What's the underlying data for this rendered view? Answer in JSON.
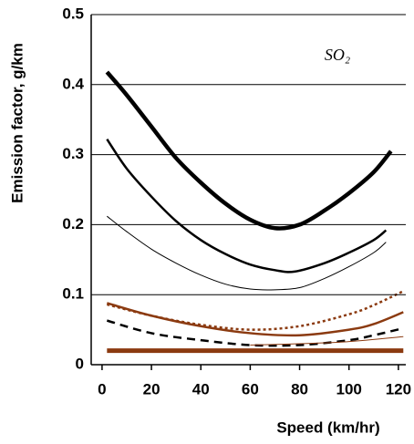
{
  "chart_data": {
    "type": "line",
    "ylabel": "Emission factor, g/km",
    "xlabel": "Speed (km/hr)",
    "annotation": "SO₂",
    "xlim": [
      -4.4,
      123
    ],
    "ylim": [
      0,
      0.5
    ],
    "xticks": [
      0,
      20,
      40,
      60,
      80,
      100,
      120
    ],
    "yticks": [
      0,
      0.1,
      0.2,
      0.3,
      0.4,
      0.5
    ],
    "grid": true,
    "series": [
      {
        "color": "#000000",
        "width": 4.5,
        "dash": "none",
        "x": [
          2,
          10,
          20,
          30,
          40,
          50,
          60,
          70,
          80,
          90,
          100,
          110,
          117
        ],
        "values": [
          0.418,
          0.385,
          0.34,
          0.295,
          0.26,
          0.23,
          0.207,
          0.195,
          0.2,
          0.22,
          0.245,
          0.275,
          0.305
        ]
      },
      {
        "color": "#000000",
        "width": 2.5,
        "dash": "none",
        "x": [
          2,
          10,
          20,
          30,
          40,
          50,
          60,
          70,
          78,
          90,
          100,
          110,
          115
        ],
        "values": [
          0.322,
          0.28,
          0.24,
          0.205,
          0.178,
          0.158,
          0.143,
          0.135,
          0.133,
          0.145,
          0.16,
          0.178,
          0.192
        ]
      },
      {
        "color": "#000000",
        "width": 1,
        "dash": "none",
        "x": [
          2,
          10,
          20,
          30,
          40,
          50,
          60,
          70,
          80,
          90,
          100,
          110,
          115
        ],
        "values": [
          0.212,
          0.19,
          0.165,
          0.145,
          0.128,
          0.115,
          0.108,
          0.107,
          0.11,
          0.123,
          0.14,
          0.16,
          0.175
        ]
      },
      {
        "color": "#8b3a10",
        "width": 2.5,
        "dash": "3,3",
        "x": [
          2,
          20,
          40,
          60,
          80,
          100,
          110,
          122
        ],
        "values": [
          0.086,
          0.07,
          0.057,
          0.05,
          0.055,
          0.072,
          0.085,
          0.105
        ]
      },
      {
        "color": "#8b3a10",
        "width": 2.5,
        "dash": "none",
        "x": [
          2,
          20,
          40,
          60,
          80,
          100,
          110,
          122
        ],
        "values": [
          0.088,
          0.07,
          0.055,
          0.045,
          0.042,
          0.05,
          0.058,
          0.075
        ]
      },
      {
        "color": "#000000",
        "width": 2.5,
        "dash": "9,6",
        "x": [
          2,
          20,
          40,
          60,
          80,
          100,
          110,
          122
        ],
        "values": [
          0.063,
          0.045,
          0.035,
          0.028,
          0.028,
          0.035,
          0.042,
          0.052
        ]
      },
      {
        "color": "#8b3a10",
        "width": 1,
        "dash": "none",
        "x": [
          60,
          80,
          100,
          122
        ],
        "values": [
          0.028,
          0.03,
          0.033,
          0.04
        ]
      },
      {
        "color": "#8b3a10",
        "width": 5,
        "dash": "none",
        "x": [
          2,
          122
        ],
        "values": [
          0.02,
          0.02
        ]
      }
    ]
  }
}
